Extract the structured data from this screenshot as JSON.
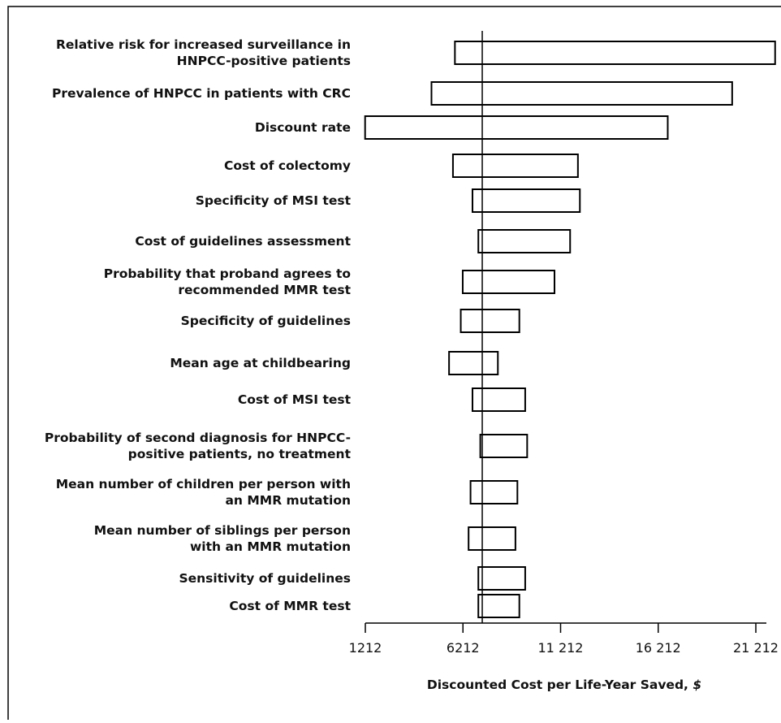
{
  "chart_data": {
    "type": "tornado",
    "xlabel": "Discounted Cost per Life-Year Saved, ",
    "xlabel_unit": "$",
    "xlim": [
      1212,
      21212
    ],
    "ticks": [
      {
        "value": 1212,
        "label": "1212"
      },
      {
        "value": 6212,
        "label": "6212"
      },
      {
        "value": 11212,
        "label": "11 212"
      },
      {
        "value": 16212,
        "label": "16 212"
      },
      {
        "value": 21212,
        "label": "21 212"
      }
    ],
    "baseline": 7200,
    "bars": [
      {
        "label": [
          "Relative risk for increased surveillance in",
          "HNPCC-positive patients"
        ],
        "low": 5800,
        "high": 22200
      },
      {
        "label": [
          "Prevalence of HNPCC in patients with CRC"
        ],
        "low": 4600,
        "high": 20000
      },
      {
        "label": [
          "Discount rate"
        ],
        "low": 1200,
        "high": 16700
      },
      {
        "label": [
          "Cost of colectomy"
        ],
        "low": 5700,
        "high": 12100
      },
      {
        "label": [
          "Specificity of MSI test"
        ],
        "low": 6700,
        "high": 12200
      },
      {
        "label": [
          "Cost of guidelines assessment"
        ],
        "low": 7000,
        "high": 11700
      },
      {
        "label": [
          "Probability that proband agrees to",
          "recommended MMR test"
        ],
        "low": 6200,
        "high": 10900
      },
      {
        "label": [
          "Specificity of guidelines"
        ],
        "low": 6100,
        "high": 9100
      },
      {
        "label": [
          "Mean age at childbearing"
        ],
        "low": 5500,
        "high": 8000
      },
      {
        "label": [
          "Cost of MSI test"
        ],
        "low": 6700,
        "high": 9400
      },
      {
        "label": [
          "Probability of second diagnosis for HNPCC-",
          "positive patients, no treatment"
        ],
        "low": 7100,
        "high": 9500
      },
      {
        "label": [
          "Mean number of children per person with",
          "an MMR mutation"
        ],
        "low": 6600,
        "high": 9000
      },
      {
        "label": [
          "Mean number of siblings per person",
          "with an MMR mutation"
        ],
        "low": 6500,
        "high": 8900
      },
      {
        "label": [
          "Sensitivity of guidelines"
        ],
        "low": 7000,
        "high": 9400
      },
      {
        "label": [
          "Cost of MMR test"
        ],
        "low": 7000,
        "high": 9100
      }
    ]
  }
}
